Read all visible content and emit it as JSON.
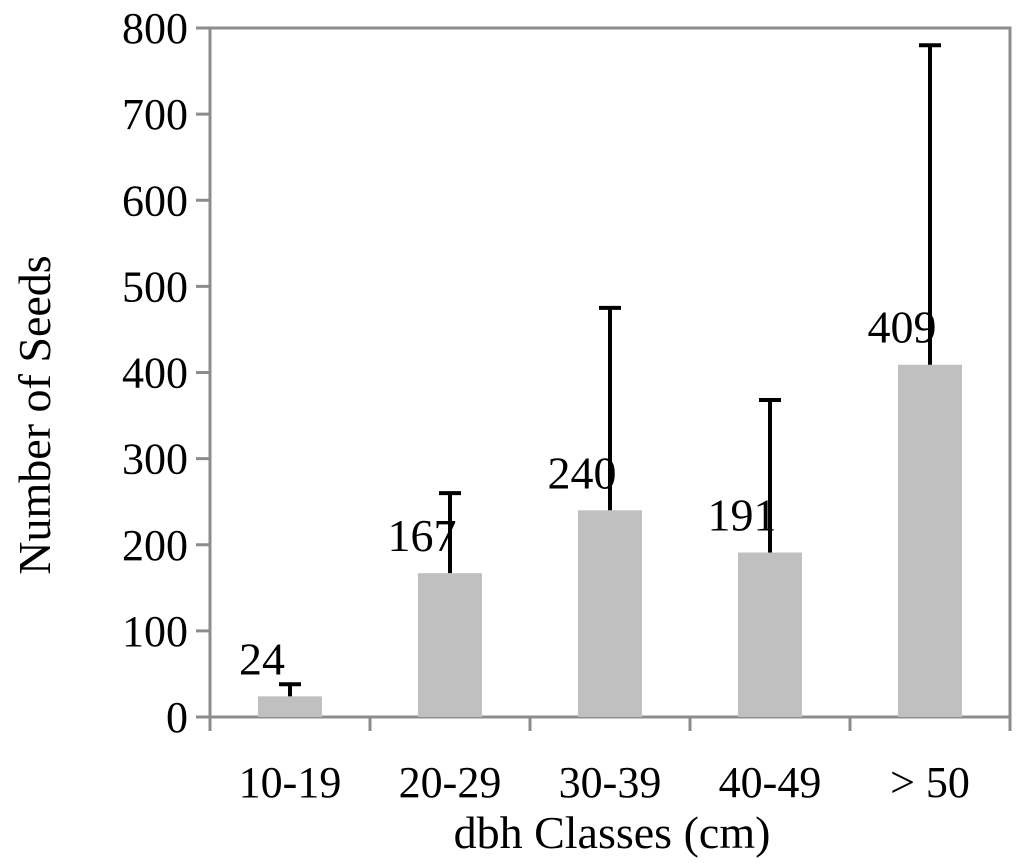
{
  "chart_data": {
    "type": "bar",
    "title": "",
    "xlabel": "dbh Classes (cm)",
    "ylabel": "Number of Seeds",
    "categories": [
      "10-19",
      "20-29",
      "30-39",
      "40-49",
      "> 50"
    ],
    "values": [
      24,
      167,
      240,
      191,
      409
    ],
    "error_upper": [
      38,
      260,
      475,
      368,
      780
    ],
    "data_labels": [
      "24",
      "167",
      "240",
      "191",
      "409"
    ],
    "ylim": [
      0,
      800
    ],
    "yticks": [
      0,
      100,
      200,
      300,
      400,
      500,
      600,
      700,
      800
    ],
    "grid": false,
    "legend": "none",
    "bar_color": "#c0c0c0",
    "error_bar_color": "#000000",
    "axis_color": "#8c8c8c"
  }
}
